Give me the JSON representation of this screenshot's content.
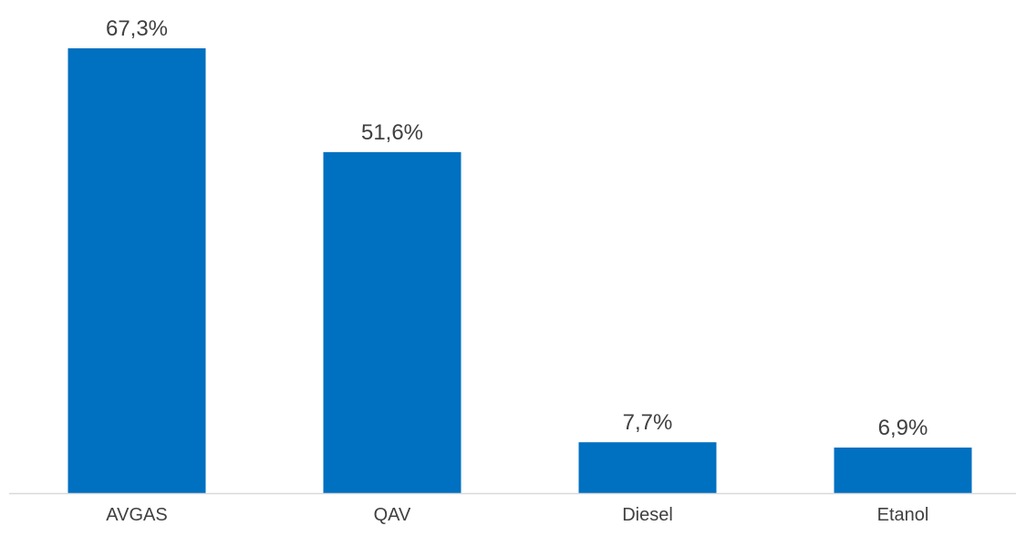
{
  "chart_data": {
    "type": "bar",
    "categories": [
      "AVGAS",
      "QAV",
      "Diesel",
      "Etanol"
    ],
    "values": [
      67.3,
      51.6,
      7.7,
      6.9
    ],
    "value_labels": [
      "67,3%",
      "51,6%",
      "7,7%",
      "6,9%"
    ],
    "title": "",
    "xlabel": "",
    "ylabel": "",
    "ylim": [
      0,
      67.3
    ],
    "grid": false,
    "legend": "none",
    "colors": {
      "bar": "#0070C0",
      "axis": "#D9D9D9",
      "text": "#404040"
    }
  }
}
